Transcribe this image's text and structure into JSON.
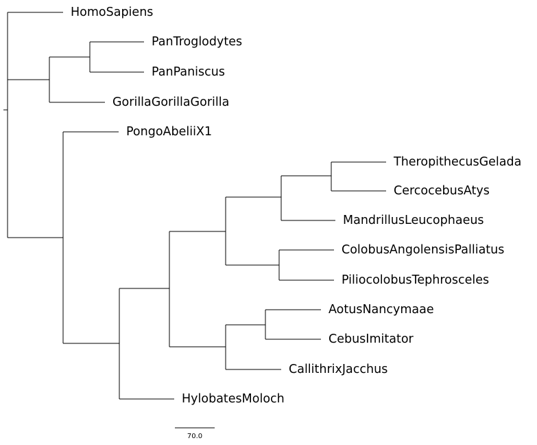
{
  "tree": {
    "tips": [
      "HomoSapiens",
      "PanTroglodytes",
      "PanPaniscus",
      "GorillaGorillaGorilla",
      "PongoAbeliiX1",
      "TheropithecusGelada",
      "CercocebusAtys",
      "MandrillusLeucophaeus",
      "ColobusAngolensisPalliatus",
      "PiliocolobusTephrosceles",
      "AotusNancymaae",
      "CebusImitator",
      "CallithrixJacchus",
      "HylobatesMoloch"
    ],
    "branch_color": "#000000"
  },
  "scale_bar": {
    "label": "70.0"
  }
}
